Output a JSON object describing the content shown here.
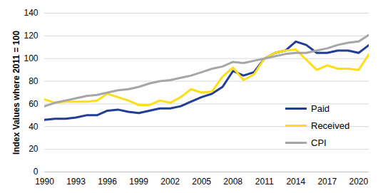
{
  "chart_data": {
    "type": "line",
    "y_label": "Index Values where 2011 = 100",
    "x": [
      1990,
      1991,
      1992,
      1993,
      1994,
      1995,
      1996,
      1997,
      1998,
      1999,
      2000,
      2001,
      2002,
      2003,
      2004,
      2005,
      2006,
      2007,
      2008,
      2009,
      2010,
      2011,
      2012,
      2013,
      2014,
      2015,
      2016,
      2017,
      2018,
      2019,
      2020,
      2021
    ],
    "series": [
      {
        "name": "Paid",
        "color": "#1f3d99",
        "values": [
          46,
          47,
          47,
          48,
          50,
          50,
          54,
          55,
          53,
          52,
          54,
          56,
          56,
          58,
          62,
          66,
          69,
          75,
          89,
          85,
          88,
          100,
          105,
          107,
          115,
          112,
          105,
          105,
          107,
          107,
          105,
          112
        ]
      },
      {
        "name": "Received",
        "color": "#ffde17",
        "values": [
          64,
          61,
          62,
          62,
          62,
          63,
          69,
          66,
          63,
          59,
          59,
          63,
          61,
          66,
          73,
          70,
          71,
          84,
          92,
          81,
          86,
          100,
          105,
          107,
          108,
          99,
          90,
          94,
          91,
          91,
          90,
          104
        ]
      },
      {
        "name": "CPI",
        "color": "#a6a6a6",
        "values": [
          58,
          61,
          63,
          65,
          67,
          68,
          70,
          72,
          73,
          75,
          78,
          80,
          81,
          83,
          85,
          88,
          91,
          93,
          97,
          96,
          98,
          100,
          102,
          104,
          105,
          105,
          107,
          109,
          112,
          114,
          115,
          121
        ]
      }
    ],
    "xlim": [
      1990,
      2021
    ],
    "xticks": [
      1990,
      1993,
      1996,
      1999,
      2002,
      2005,
      2008,
      2011,
      2014,
      2017,
      2020
    ],
    "ylim": [
      0,
      140
    ],
    "yticks": [
      0,
      20,
      40,
      60,
      80,
      100,
      120,
      140
    ],
    "grid": true,
    "legend": "right"
  }
}
